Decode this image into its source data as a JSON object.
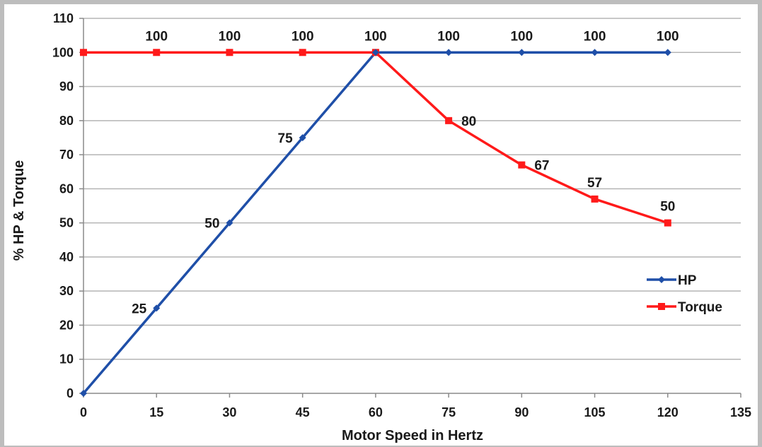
{
  "chart_data": {
    "type": "line",
    "title": "",
    "xlabel": "Motor Speed in Hertz",
    "ylabel": "% HP & Torque",
    "xlim": [
      0,
      135
    ],
    "ylim": [
      0,
      110
    ],
    "xticks": [
      0,
      15,
      30,
      45,
      60,
      75,
      90,
      105,
      120,
      135
    ],
    "yticks": [
      0,
      10,
      20,
      30,
      40,
      50,
      60,
      70,
      80,
      90,
      100,
      110
    ],
    "grid": true,
    "legend_position": "right",
    "series": [
      {
        "name": "HP",
        "color": "#1f4fa8",
        "marker": "diamond",
        "x": [
          0,
          15,
          30,
          45,
          60,
          75,
          90,
          105,
          120
        ],
        "y": [
          0,
          25,
          50,
          75,
          100,
          100,
          100,
          100,
          100
        ]
      },
      {
        "name": "Torque",
        "color": "#ff1a1a",
        "marker": "square",
        "x": [
          0,
          15,
          30,
          45,
          60,
          75,
          90,
          105,
          120
        ],
        "y": [
          100,
          100,
          100,
          100,
          100,
          80,
          67,
          57,
          50
        ]
      }
    ],
    "data_labels": [
      {
        "series": "HP",
        "x": 15,
        "y": 25,
        "text": "25",
        "pos": "left"
      },
      {
        "series": "HP",
        "x": 30,
        "y": 50,
        "text": "50",
        "pos": "left"
      },
      {
        "series": "HP",
        "x": 45,
        "y": 75,
        "text": "75",
        "pos": "left"
      },
      {
        "series": "Torque",
        "x": 15,
        "y": 100,
        "text": "100",
        "pos": "above"
      },
      {
        "series": "Torque",
        "x": 30,
        "y": 100,
        "text": "100",
        "pos": "above"
      },
      {
        "series": "Torque",
        "x": 45,
        "y": 100,
        "text": "100",
        "pos": "above"
      },
      {
        "series": "Torque",
        "x": 60,
        "y": 100,
        "text": "100",
        "pos": "above"
      },
      {
        "series": "HP",
        "x": 75,
        "y": 100,
        "text": "100",
        "pos": "above"
      },
      {
        "series": "HP",
        "x": 90,
        "y": 100,
        "text": "100",
        "pos": "above"
      },
      {
        "series": "HP",
        "x": 105,
        "y": 100,
        "text": "100",
        "pos": "above"
      },
      {
        "series": "HP",
        "x": 120,
        "y": 100,
        "text": "100",
        "pos": "above"
      },
      {
        "series": "Torque",
        "x": 75,
        "y": 80,
        "text": "80",
        "pos": "right"
      },
      {
        "series": "Torque",
        "x": 90,
        "y": 67,
        "text": "67",
        "pos": "right"
      },
      {
        "series": "Torque",
        "x": 105,
        "y": 57,
        "text": "57",
        "pos": "above"
      },
      {
        "series": "Torque",
        "x": 120,
        "y": 50,
        "text": "50",
        "pos": "above"
      }
    ]
  }
}
